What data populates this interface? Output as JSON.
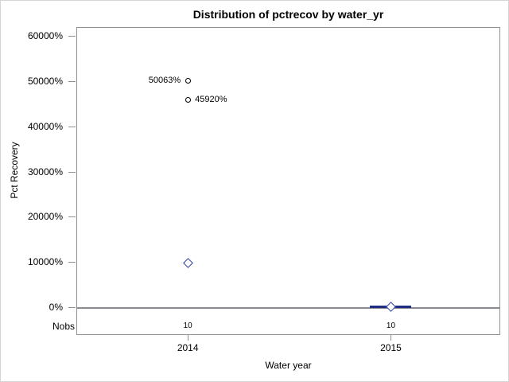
{
  "chart_data": {
    "type": "boxplot",
    "title": "Distribution of pctrecov by water_yr",
    "xlabel": "Water year",
    "ylabel": "Pct Recovery",
    "categories": [
      "2014",
      "2015"
    ],
    "nobs_label": "Nobs",
    "nobs": [
      "10",
      "10"
    ],
    "ylim": [
      0,
      60000
    ],
    "ytick_values": [
      0,
      10000,
      20000,
      30000,
      40000,
      50000,
      60000
    ],
    "ytick_suffix": "%",
    "refline_value": 0,
    "grid": false,
    "legend": "none",
    "groups": [
      {
        "category": "2014",
        "mean": 9700,
        "box_low": null,
        "box_high": null,
        "outliers": [
          {
            "value": 50063,
            "label": "50063%",
            "label_side": "left"
          },
          {
            "value": 45920,
            "label": "45920%",
            "label_side": "right"
          }
        ]
      },
      {
        "category": "2015",
        "mean": 150,
        "box_low": 0,
        "box_high": 300,
        "outliers": []
      }
    ],
    "colors": {
      "box_blue": "#1f2d85",
      "diamond_blue": "#2c3fa3",
      "outlier_stroke": "#000000",
      "axis_gray": "#8f8f96",
      "refline_gray": "#8a8a90",
      "text_black": "#000000",
      "background": "#ffffff"
    }
  }
}
